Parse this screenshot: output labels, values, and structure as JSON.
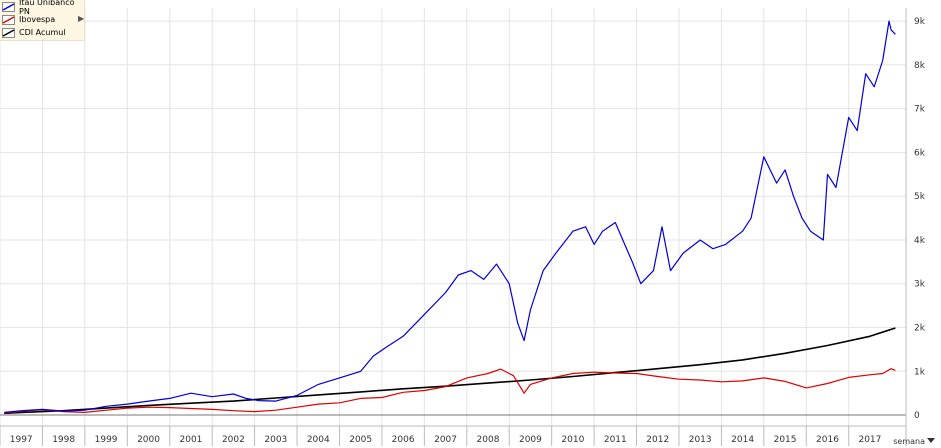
{
  "colors": {
    "itau": "#0000dd",
    "ibov": "#e00000",
    "cdi": "#000000",
    "grid": "#e4e4e4",
    "axis": "#777777"
  },
  "period_selector": {
    "label": "semana",
    "icon": "chevron-down-icon"
  },
  "chart_data": {
    "type": "line",
    "title": "",
    "xlabel": "",
    "ylabel": "",
    "xlim": [
      1996.5,
      2017.85
    ],
    "ylim": [
      -250,
      9300
    ],
    "x_ticks": [
      1997,
      1998,
      1999,
      2000,
      2001,
      2002,
      2003,
      2004,
      2005,
      2006,
      2007,
      2008,
      2009,
      2010,
      2011,
      2012,
      2013,
      2014,
      2015,
      2016,
      2017
    ],
    "y_ticks": [
      {
        "value": 0,
        "label": "0"
      },
      {
        "value": 1000,
        "label": "1k"
      },
      {
        "value": 2000,
        "label": "2k"
      },
      {
        "value": 3000,
        "label": "3k"
      },
      {
        "value": 4000,
        "label": "4k"
      },
      {
        "value": 5000,
        "label": "5k"
      },
      {
        "value": 6000,
        "label": "6k"
      },
      {
        "value": 7000,
        "label": "7k"
      },
      {
        "value": 8000,
        "label": "8k"
      },
      {
        "value": 9000,
        "label": "9k"
      }
    ],
    "grid": true,
    "legend_position": "top-left",
    "series": [
      {
        "name": "Itau Unibanco PN",
        "color": "#0000dd",
        "x": [
          1996.6,
          1997,
          1997.5,
          1998,
          1998.5,
          1999,
          1999.5,
          2000,
          2000.5,
          2001,
          2001.5,
          2002,
          2002.3,
          2002.6,
          2003,
          2003.5,
          2004,
          2004.5,
          2005,
          2005.3,
          2005.6,
          2006,
          2006.5,
          2007,
          2007.3,
          2007.6,
          2007.9,
          2008.2,
          2008.5,
          2008.7,
          2008.85,
          2009,
          2009.3,
          2009.6,
          2010,
          2010.3,
          2010.5,
          2010.7,
          2011,
          2011.2,
          2011.4,
          2011.6,
          2011.9,
          2012.1,
          2012.3,
          2012.6,
          2013,
          2013.3,
          2013.6,
          2014,
          2014.2,
          2014.5,
          2014.8,
          2015,
          2015.2,
          2015.4,
          2015.6,
          2015.9,
          2016,
          2016.2,
          2016.5,
          2016.7,
          2016.9,
          2017.1,
          2017.3,
          2017.45,
          2017.5,
          2017.6
        ],
        "y": [
          60,
          100,
          130,
          90,
          110,
          200,
          250,
          320,
          380,
          500,
          420,
          480,
          380,
          330,
          320,
          450,
          700,
          850,
          1000,
          1350,
          1550,
          1800,
          2300,
          2800,
          3200,
          3300,
          3100,
          3450,
          3000,
          2100,
          1700,
          2400,
          3300,
          3700,
          4200,
          4300,
          3900,
          4200,
          4400,
          3950,
          3500,
          3000,
          3300,
          4300,
          3300,
          3700,
          4000,
          3800,
          3900,
          4200,
          4500,
          5900,
          5300,
          5600,
          5000,
          4500,
          4200,
          4000,
          5500,
          5200,
          6800,
          6500,
          7800,
          7500,
          8100,
          9000,
          8800,
          8700
        ]
      },
      {
        "name": "Ibovespa",
        "color": "#e00000",
        "x": [
          1996.6,
          1997,
          1997.5,
          1998,
          1998.5,
          1999,
          1999.5,
          2000,
          2000.5,
          2001,
          2001.5,
          2002,
          2002.5,
          2003,
          2003.5,
          2004,
          2004.5,
          2005,
          2005.5,
          2006,
          2006.5,
          2007,
          2007.5,
          2008,
          2008.3,
          2008.6,
          2008.85,
          2009,
          2009.5,
          2010,
          2010.5,
          2011,
          2011.5,
          2012,
          2012.5,
          2013,
          2013.5,
          2014,
          2014.5,
          2015,
          2015.5,
          2016,
          2016.5,
          2017,
          2017.3,
          2017.5,
          2017.6
        ],
        "y": [
          50,
          90,
          120,
          80,
          60,
          110,
          160,
          180,
          170,
          150,
          130,
          100,
          80,
          110,
          180,
          250,
          280,
          380,
          400,
          520,
          560,
          650,
          850,
          950,
          1050,
          900,
          500,
          700,
          850,
          950,
          980,
          960,
          950,
          880,
          820,
          800,
          760,
          780,
          850,
          770,
          620,
          720,
          860,
          920,
          950,
          1060,
          1020
        ]
      },
      {
        "name": "CDI Acumul",
        "color": "#000000",
        "x": [
          1996.6,
          1997,
          1998,
          1999,
          2000,
          2001,
          2002,
          2003,
          2004,
          2005,
          2006,
          2007,
          2008,
          2009,
          2010,
          2011,
          2012,
          2013,
          2014,
          2015,
          2016,
          2017,
          2017.6
        ],
        "y": [
          40,
          60,
          100,
          160,
          220,
          270,
          320,
          390,
          460,
          530,
          600,
          660,
          730,
          800,
          880,
          970,
          1060,
          1150,
          1260,
          1410,
          1590,
          1800,
          1990
        ]
      }
    ]
  }
}
